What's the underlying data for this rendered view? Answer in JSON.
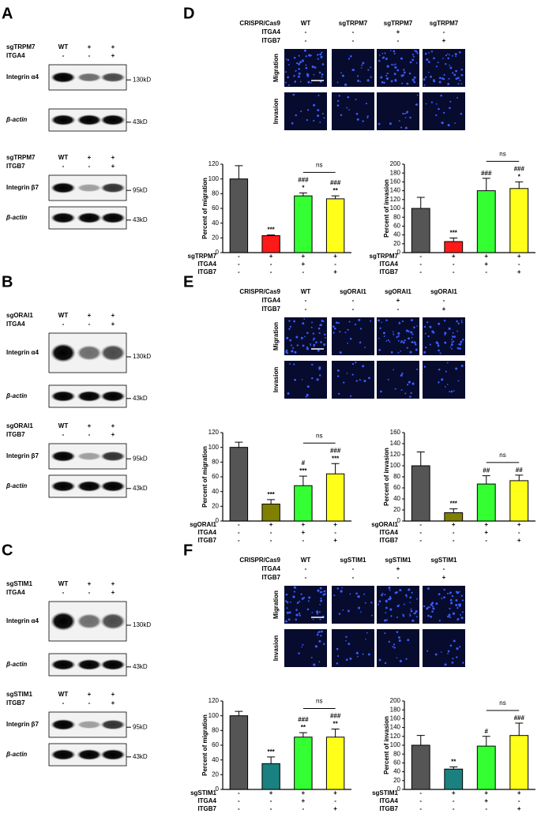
{
  "panels": [
    {
      "label": "A",
      "blots": [
        {
          "conditions": [
            {
              "name": "sgTRPM7",
              "values": [
                "WT",
                "+",
                "+"
              ]
            },
            {
              "name": "ITGA4",
              "values": [
                "-",
                "-",
                "+"
              ]
            }
          ],
          "bands": [
            {
              "name": "Integrin α4",
              "size": "130kD"
            },
            {
              "name": "β-actin",
              "size": "43kD"
            }
          ]
        },
        {
          "conditions": [
            {
              "name": "sgTRPM7",
              "values": [
                "WT",
                "+",
                "+"
              ]
            },
            {
              "name": "ITGB7",
              "values": [
                "-",
                "-",
                "+"
              ]
            }
          ],
          "bands": [
            {
              "name": "Integrin β7",
              "size": "95kD"
            },
            {
              "name": "β-actin",
              "size": "43kD"
            }
          ]
        }
      ]
    },
    {
      "label": "B",
      "blots": [
        {
          "conditions": [
            {
              "name": "sgORAI1",
              "values": [
                "WT",
                "+",
                "+"
              ]
            },
            {
              "name": "ITGA4",
              "values": [
                "-",
                "-",
                "+"
              ]
            }
          ],
          "bands": [
            {
              "name": "Integrin α4",
              "size": "130kD"
            },
            {
              "name": "β-actin",
              "size": "43kD"
            }
          ]
        },
        {
          "conditions": [
            {
              "name": "sgORAI1",
              "values": [
                "WT",
                "+",
                "+"
              ]
            },
            {
              "name": "ITGB7",
              "values": [
                "-",
                "-",
                "+"
              ]
            }
          ],
          "bands": [
            {
              "name": "Integrin β7",
              "size": "95kD"
            },
            {
              "name": "β-actin",
              "size": "43kD"
            }
          ]
        }
      ]
    },
    {
      "label": "C",
      "blots": [
        {
          "conditions": [
            {
              "name": "sgSTIM1",
              "values": [
                "WT",
                "+",
                "+"
              ]
            },
            {
              "name": "ITGA4",
              "values": [
                "-",
                "-",
                "+"
              ]
            }
          ],
          "bands": [
            {
              "name": "Integrin α4",
              "size": "130kD"
            },
            {
              "name": "β-actin",
              "size": "43kD"
            }
          ]
        },
        {
          "conditions": [
            {
              "name": "sgSTIM1",
              "values": [
                "WT",
                "+",
                "+"
              ]
            },
            {
              "name": "ITGB7",
              "values": [
                "-",
                "-",
                "+"
              ]
            }
          ],
          "bands": [
            {
              "name": "Integrin β7",
              "size": "95kD"
            },
            {
              "name": "β-actin",
              "size": "43kD"
            }
          ]
        }
      ]
    }
  ],
  "assays": [
    {
      "label": "D",
      "conditions": [
        {
          "name": "CRISPR/Cas9",
          "values": [
            "WT",
            "sgTRPM7",
            "sgTRPM7",
            "sgTRPM7"
          ]
        },
        {
          "name": "ITGA4",
          "values": [
            "-",
            "-",
            "+",
            "-"
          ]
        },
        {
          "name": "ITGB7",
          "values": [
            "-",
            "-",
            "-",
            "+"
          ]
        }
      ],
      "rows": [
        "Migration",
        "Invasion"
      ]
    },
    {
      "label": "E",
      "conditions": [
        {
          "name": "CRISPR/Cas9",
          "values": [
            "WT",
            "sgORAI1",
            "sgORAI1",
            "sgORAI1"
          ]
        },
        {
          "name": "ITGA4",
          "values": [
            "-",
            "-",
            "+",
            "-"
          ]
        },
        {
          "name": "ITGB7",
          "values": [
            "-",
            "-",
            "-",
            "+"
          ]
        }
      ],
      "rows": [
        "Migration",
        "Invasion"
      ]
    },
    {
      "label": "F",
      "conditions": [
        {
          "name": "CRISPR/Cas9",
          "values": [
            "WT",
            "sgSTIM1",
            "sgSTIM1",
            "sgSTIM1"
          ]
        },
        {
          "name": "ITGA4",
          "values": [
            "-",
            "-",
            "+",
            "-"
          ]
        },
        {
          "name": "ITGB7",
          "values": [
            "-",
            "-",
            "-",
            "+"
          ]
        }
      ],
      "rows": [
        "Migration",
        "Invasion"
      ]
    }
  ],
  "chart_data": [
    {
      "type": "bar",
      "ylabel": "Percent of migration",
      "ylim": [
        0,
        120
      ],
      "yticks": [
        0,
        20,
        40,
        60,
        80,
        100,
        120
      ],
      "values": [
        100,
        23,
        77,
        73
      ],
      "errors": [
        18,
        1,
        4,
        4
      ],
      "colors": [
        "#555555",
        "#ff1a1a",
        "#33ff33",
        "#ffff1a"
      ],
      "annotations": [
        [],
        [
          "***"
        ],
        [
          "###",
          "*"
        ],
        [
          "###",
          "**"
        ]
      ],
      "bracket_label": "ns",
      "condition_rows": [
        {
          "name": "sgTRPM7",
          "values": [
            "-",
            "+",
            "+",
            "+"
          ]
        },
        {
          "name": "ITGA4",
          "values": [
            "-",
            "-",
            "+",
            "-"
          ]
        },
        {
          "name": "ITGB7",
          "values": [
            "-",
            "-",
            "-",
            "+"
          ]
        }
      ]
    },
    {
      "type": "bar",
      "ylabel": "Percent of invasion",
      "ylim": [
        0,
        200
      ],
      "yticks": [
        0,
        20,
        40,
        60,
        80,
        100,
        120,
        140,
        160,
        180,
        200
      ],
      "values": [
        100,
        25,
        140,
        145
      ],
      "errors": [
        25,
        8,
        28,
        15
      ],
      "colors": [
        "#555555",
        "#ff1a1a",
        "#33ff33",
        "#ffff1a"
      ],
      "annotations": [
        [],
        [
          "***"
        ],
        [
          "###"
        ],
        [
          "###",
          "*"
        ]
      ],
      "bracket_label": "ns",
      "condition_rows": [
        {
          "name": "sgTRPM7",
          "values": [
            "-",
            "+",
            "+",
            "+"
          ]
        },
        {
          "name": "ITGA4",
          "values": [
            "-",
            "-",
            "+",
            "-"
          ]
        },
        {
          "name": "ITGB7",
          "values": [
            "-",
            "-",
            "-",
            "+"
          ]
        }
      ]
    },
    {
      "type": "bar",
      "ylabel": "Percent of migration",
      "ylim": [
        0,
        120
      ],
      "yticks": [
        0,
        20,
        40,
        60,
        80,
        100,
        120
      ],
      "values": [
        100,
        23,
        48,
        64
      ],
      "errors": [
        7,
        6,
        13,
        14
      ],
      "colors": [
        "#555555",
        "#808000",
        "#33ff33",
        "#ffff1a"
      ],
      "annotations": [
        [],
        [
          "***"
        ],
        [
          "#",
          "***"
        ],
        [
          "###",
          "***"
        ]
      ],
      "bracket_label": "ns",
      "condition_rows": [
        {
          "name": "sgORAI1",
          "values": [
            "-",
            "+",
            "+",
            "+"
          ]
        },
        {
          "name": "ITGA4",
          "values": [
            "-",
            "-",
            "+",
            "-"
          ]
        },
        {
          "name": "ITGB7",
          "values": [
            "-",
            "-",
            "-",
            "+"
          ]
        }
      ]
    },
    {
      "type": "bar",
      "ylabel": "Percent of invasion",
      "ylim": [
        0,
        160
      ],
      "yticks": [
        0,
        20,
        40,
        60,
        80,
        100,
        120,
        140,
        160
      ],
      "values": [
        100,
        15,
        67,
        73
      ],
      "errors": [
        25,
        7,
        15,
        10
      ],
      "colors": [
        "#555555",
        "#808000",
        "#33ff33",
        "#ffff1a"
      ],
      "annotations": [
        [],
        [
          "***"
        ],
        [
          "##"
        ],
        [
          "##"
        ]
      ],
      "bracket_label": "ns",
      "condition_rows": [
        {
          "name": "sgORAI1",
          "values": [
            "-",
            "+",
            "+",
            "+"
          ]
        },
        {
          "name": "ITGA4",
          "values": [
            "-",
            "-",
            "+",
            "-"
          ]
        },
        {
          "name": "ITGB7",
          "values": [
            "-",
            "-",
            "-",
            "+"
          ]
        }
      ]
    },
    {
      "type": "bar",
      "ylabel": "Percent of migration",
      "ylim": [
        0,
        120
      ],
      "yticks": [
        0,
        20,
        40,
        60,
        80,
        100,
        120
      ],
      "values": [
        100,
        35,
        71,
        71
      ],
      "errors": [
        6,
        9,
        6,
        11
      ],
      "colors": [
        "#555555",
        "#1a8080",
        "#33ff33",
        "#ffff1a"
      ],
      "annotations": [
        [],
        [
          "***"
        ],
        [
          "###",
          "**"
        ],
        [
          "###",
          "**"
        ]
      ],
      "bracket_label": "ns",
      "condition_rows": [
        {
          "name": "sgSTIM1",
          "values": [
            "-",
            "+",
            "+",
            "+"
          ]
        },
        {
          "name": "ITGA4",
          "values": [
            "-",
            "-",
            "+",
            "-"
          ]
        },
        {
          "name": "ITGB7",
          "values": [
            "-",
            "-",
            "-",
            "+"
          ]
        }
      ]
    },
    {
      "type": "bar",
      "ylabel": "Percent of invasion",
      "ylim": [
        0,
        200
      ],
      "yticks": [
        0,
        20,
        40,
        60,
        80,
        100,
        120,
        140,
        160,
        180,
        200
      ],
      "values": [
        100,
        46,
        98,
        122
      ],
      "errors": [
        22,
        5,
        22,
        28
      ],
      "colors": [
        "#555555",
        "#1a8080",
        "#33ff33",
        "#ffff1a"
      ],
      "annotations": [
        [],
        [
          "**"
        ],
        [
          "#"
        ],
        [
          "###"
        ]
      ],
      "bracket_label": "ns",
      "condition_rows": [
        {
          "name": "sgSTIM1",
          "values": [
            "-",
            "+",
            "+",
            "+"
          ]
        },
        {
          "name": "ITGA4",
          "values": [
            "-",
            "-",
            "+",
            "-"
          ]
        },
        {
          "name": "ITGB7",
          "values": [
            "-",
            "-",
            "-",
            "+"
          ]
        }
      ]
    }
  ]
}
